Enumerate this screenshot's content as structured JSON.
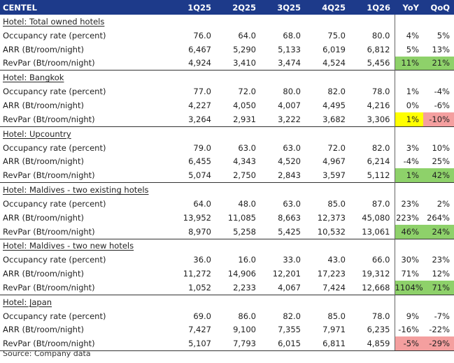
{
  "header": {
    "label": "CENTEL",
    "columns": [
      "1Q25",
      "2Q25",
      "3Q25",
      "4Q25",
      "1Q26",
      "YoY",
      "QoQ"
    ]
  },
  "sections": [
    {
      "title": "Hotel: Total owned hotels",
      "rows": [
        {
          "label": "Occupancy rate (percent)",
          "values": [
            "76.0",
            "64.0",
            "68.0",
            "75.0",
            "80.0"
          ],
          "yoy": "4%",
          "qoq": "5%",
          "yoy_bg": "",
          "qoq_bg": ""
        },
        {
          "label": "ARR (Bt/room/night)",
          "values": [
            "6,467",
            "5,290",
            "5,133",
            "6,019",
            "6,812"
          ],
          "yoy": "5%",
          "qoq": "13%",
          "yoy_bg": "",
          "qoq_bg": ""
        },
        {
          "label": "RevPar (Bt/room/night)",
          "values": [
            "4,924",
            "3,410",
            "3,474",
            "4,524",
            "5,456"
          ],
          "yoy": "11%",
          "qoq": "21%",
          "yoy_bg": "pos",
          "qoq_bg": "pos"
        }
      ]
    },
    {
      "title": "Hotel: Bangkok",
      "rows": [
        {
          "label": "Occupancy rate (percent)",
          "values": [
            "77.0",
            "72.0",
            "80.0",
            "82.0",
            "78.0"
          ],
          "yoy": "1%",
          "qoq": "-4%",
          "yoy_bg": "",
          "qoq_bg": ""
        },
        {
          "label": "ARR (Bt/room/night)",
          "values": [
            "4,227",
            "4,050",
            "4,007",
            "4,495",
            "4,216"
          ],
          "yoy": "0%",
          "qoq": "-6%",
          "yoy_bg": "",
          "qoq_bg": ""
        },
        {
          "label": "RevPar (Bt/room/night)",
          "values": [
            "3,264",
            "2,931",
            "3,222",
            "3,682",
            "3,306"
          ],
          "yoy": "1%",
          "qoq": "-10%",
          "yoy_bg": "hl",
          "qoq_bg": "neg"
        }
      ]
    },
    {
      "title": "Hotel: Upcountry",
      "rows": [
        {
          "label": "Occupancy rate (percent)",
          "values": [
            "79.0",
            "63.0",
            "63.0",
            "72.0",
            "82.0"
          ],
          "yoy": "3%",
          "qoq": "10%",
          "yoy_bg": "",
          "qoq_bg": ""
        },
        {
          "label": "ARR (Bt/room/night)",
          "values": [
            "6,455",
            "4,343",
            "4,520",
            "4,967",
            "6,214"
          ],
          "yoy": "-4%",
          "qoq": "25%",
          "yoy_bg": "",
          "qoq_bg": ""
        },
        {
          "label": "RevPar (Bt/room/night)",
          "values": [
            "5,074",
            "2,750",
            "2,843",
            "3,597",
            "5,112"
          ],
          "yoy": "1%",
          "qoq": "42%",
          "yoy_bg": "pos",
          "qoq_bg": "pos"
        }
      ]
    },
    {
      "title": "Hotel: Maldives - two existing hotels",
      "rows": [
        {
          "label": "Occupancy rate (percent)",
          "values": [
            "64.0",
            "48.0",
            "63.0",
            "85.0",
            "87.0"
          ],
          "yoy": "23%",
          "qoq": "2%",
          "yoy_bg": "",
          "qoq_bg": ""
        },
        {
          "label": "ARR (Bt/room/night)",
          "values": [
            "13,952",
            "11,085",
            "8,663",
            "12,373",
            "45,080"
          ],
          "yoy": "223%",
          "qoq": "264%",
          "yoy_bg": "",
          "qoq_bg": ""
        },
        {
          "label": "RevPar (Bt/room/night)",
          "values": [
            "8,970",
            "5,258",
            "5,425",
            "10,532",
            "13,061"
          ],
          "yoy": "46%",
          "qoq": "24%",
          "yoy_bg": "pos",
          "qoq_bg": "pos"
        }
      ]
    },
    {
      "title": "Hotel: Maldives - two new hotels",
      "rows": [
        {
          "label": "Occupancy rate (percent)",
          "values": [
            "36.0",
            "16.0",
            "33.0",
            "43.0",
            "66.0"
          ],
          "yoy": "30%",
          "qoq": "23%",
          "yoy_bg": "",
          "qoq_bg": ""
        },
        {
          "label": "ARR (Bt/room/night)",
          "values": [
            "11,272",
            "14,906",
            "12,201",
            "17,223",
            "19,312"
          ],
          "yoy": "71%",
          "qoq": "12%",
          "yoy_bg": "",
          "qoq_bg": ""
        },
        {
          "label": "RevPar (Bt/room/night)",
          "values": [
            "1,052",
            "2,233",
            "4,067",
            "7,424",
            "12,668"
          ],
          "yoy": "1104%",
          "qoq": "71%",
          "yoy_bg": "pos",
          "qoq_bg": "pos"
        }
      ]
    },
    {
      "title": "Hotel: Japan",
      "rows": [
        {
          "label": "Occupancy rate (percent)",
          "values": [
            "69.0",
            "86.0",
            "82.0",
            "85.0",
            "78.0"
          ],
          "yoy": "9%",
          "qoq": "-7%",
          "yoy_bg": "",
          "qoq_bg": ""
        },
        {
          "label": "ARR (Bt/room/night)",
          "values": [
            "7,427",
            "9,100",
            "7,355",
            "7,971",
            "6,235"
          ],
          "yoy": "-16%",
          "qoq": "-22%",
          "yoy_bg": "",
          "qoq_bg": ""
        },
        {
          "label": "RevPar (Bt/room/night)",
          "values": [
            "5,107",
            "7,793",
            "6,015",
            "6,811",
            "4,859"
          ],
          "yoy": "-5%",
          "qoq": "-29%",
          "yoy_bg": "neg",
          "qoq_bg": "neg"
        }
      ]
    }
  ],
  "source": "Source: Company data",
  "colors": {
    "header_bg": "#1d3a8a",
    "positive_fill": "#8ed16a",
    "negative_fill": "#f49f9f",
    "highlight_fill": "#ffff00"
  }
}
